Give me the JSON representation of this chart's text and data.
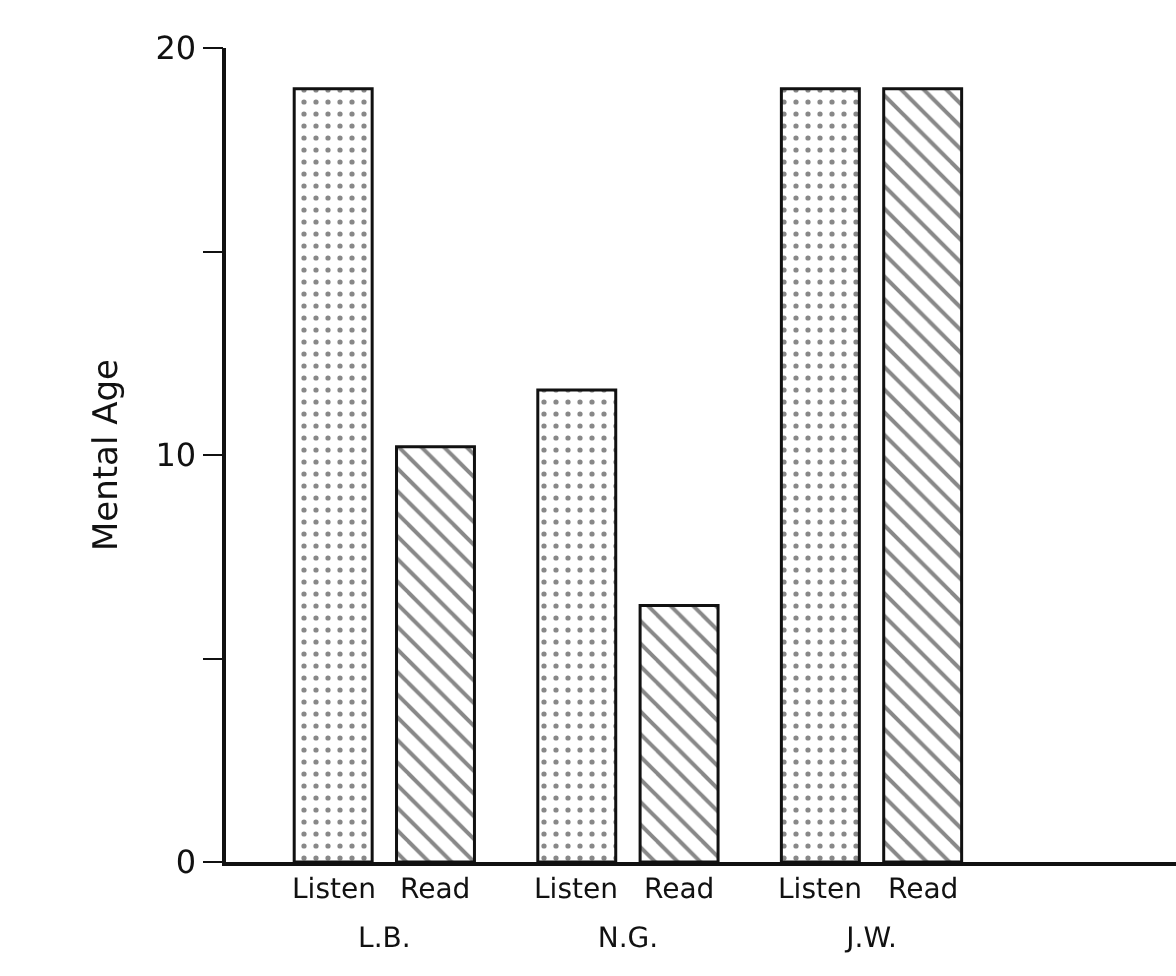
{
  "chart_data": {
    "type": "bar",
    "ylabel": "Mental Age",
    "categories": [
      "L.B.",
      "N.G.",
      "J.W."
    ],
    "series": [
      {
        "name": "Listen",
        "color": "#111111",
        "values": [
          19.0,
          11.6,
          19.0
        ]
      },
      {
        "name": "Read",
        "color": "#111111",
        "values": [
          10.2,
          6.3,
          19.0
        ]
      }
    ],
    "ylim": [
      0,
      20
    ],
    "yticks": [
      0,
      {
        "value": 5,
        "label": null
      },
      10,
      {
        "value": 15,
        "label": null
      },
      20
    ],
    "legend": false
  }
}
